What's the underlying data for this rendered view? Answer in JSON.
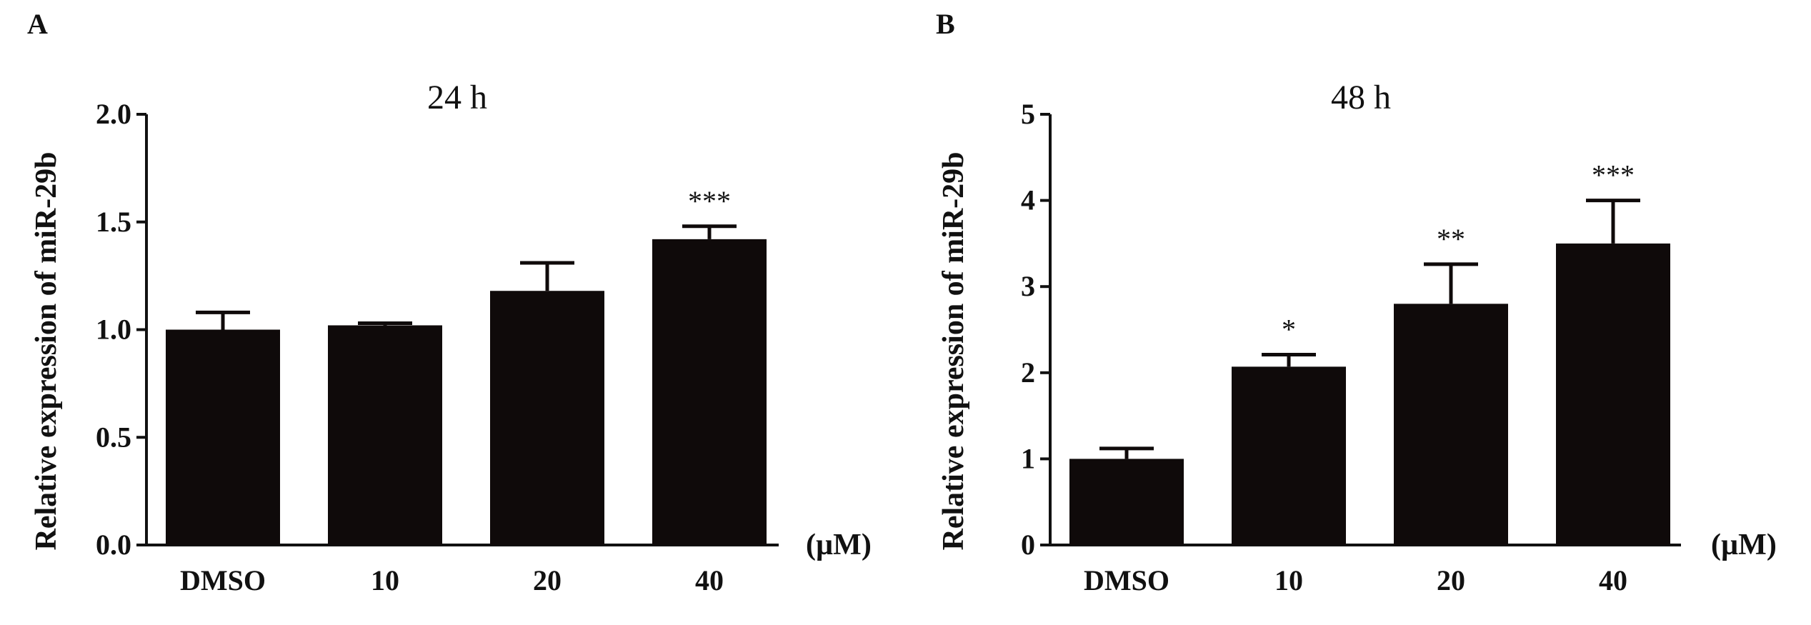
{
  "chart_data": [
    {
      "panel": "A",
      "type": "bar",
      "title": "24 h",
      "ylabel": "Relative expression of miR-29b",
      "xunit": "(µM)",
      "categories": [
        "DMSO",
        "10",
        "20",
        "40"
      ],
      "values": [
        1.0,
        1.02,
        1.18,
        1.42
      ],
      "error": [
        0.08,
        0.01,
        0.13,
        0.06
      ],
      "significance": [
        "",
        "",
        "",
        "***"
      ],
      "ylim": [
        0,
        2.0
      ],
      "yticks": [
        "0.0",
        "0.5",
        "1.0",
        "1.5",
        "2.0"
      ],
      "bar_color": "#0f0a0a",
      "grid": false
    },
    {
      "panel": "B",
      "type": "bar",
      "title": "48 h",
      "ylabel": "Relative expression of miR-29b",
      "xunit": "(µM)",
      "categories": [
        "DMSO",
        "10",
        "20",
        "40"
      ],
      "values": [
        1.0,
        2.07,
        2.8,
        3.5
      ],
      "error": [
        0.12,
        0.14,
        0.46,
        0.5
      ],
      "significance": [
        "",
        "*",
        "**",
        "***"
      ],
      "ylim": [
        0,
        5
      ],
      "yticks": [
        "0",
        "1",
        "2",
        "3",
        "4",
        "5"
      ],
      "bar_color": "#0f0a0a",
      "grid": false
    }
  ]
}
